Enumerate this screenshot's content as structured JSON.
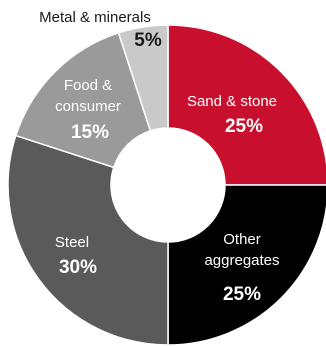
{
  "chart_data": {
    "type": "pie",
    "style": "donut",
    "title": "",
    "slices": [
      {
        "name_lines": [
          "Sand & stone"
        ],
        "value": 25,
        "label": "25%",
        "color": "#c8102e",
        "text_color": "#ffffff"
      },
      {
        "name_lines": [
          "Other",
          "aggregates"
        ],
        "value": 25,
        "label": "25%",
        "color": "#000000",
        "text_color": "#ffffff"
      },
      {
        "name_lines": [
          "Steel"
        ],
        "value": 30,
        "label": "30%",
        "color": "#5a5a5a",
        "text_color": "#ffffff"
      },
      {
        "name_lines": [
          "Food &",
          "consumer"
        ],
        "value": 15,
        "label": "15%",
        "color": "#9a9a9a",
        "text_color": "#ffffff"
      },
      {
        "name_lines": [
          "Metal & minerals"
        ],
        "value": 5,
        "label": "5%",
        "color": "#c9c9c9",
        "text_color": "#1a1a1a"
      }
    ]
  }
}
